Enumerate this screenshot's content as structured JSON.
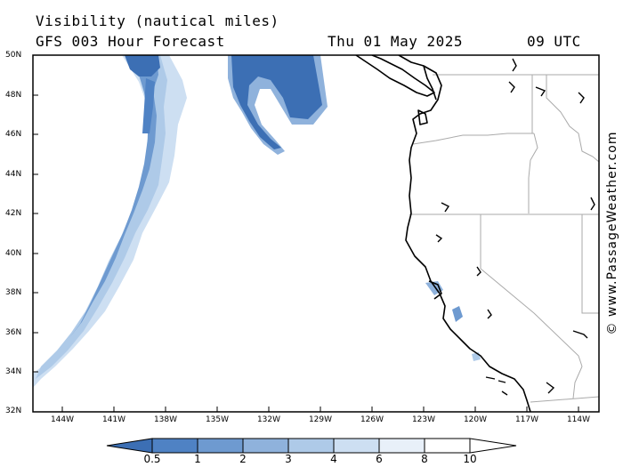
{
  "header": {
    "title": "Visibility (nautical miles)",
    "model": "GFS 003 Hour Forecast",
    "date": "Thu 01 May 2025",
    "time": "09 UTC"
  },
  "credit": "© www.PassageWeather.com",
  "map": {
    "lat_labels": [
      "50N",
      "48N",
      "46N",
      "44N",
      "42N",
      "40N",
      "38N",
      "36N",
      "34N",
      "32N"
    ],
    "lon_labels": [
      "144W",
      "141W",
      "138W",
      "135W",
      "132W",
      "129W",
      "126W",
      "123W",
      "120W",
      "117W",
      "114W"
    ],
    "lat_range": [
      32,
      50
    ],
    "lon_range": [
      -146,
      -113
    ],
    "colors": {
      "coast": "#000000",
      "border": "#aaaaaa",
      "ocean": "#ffffff"
    }
  },
  "legend": {
    "labels": [
      "0.5",
      "1",
      "2",
      "3",
      "4",
      "6",
      "8",
      "10"
    ],
    "colors": [
      "#3c6fb4",
      "#4f82c4",
      "#6e9ad0",
      "#8fb2dc",
      "#aecae8",
      "#cddff2",
      "#e8f0f9",
      "#ffffff"
    ]
  }
}
